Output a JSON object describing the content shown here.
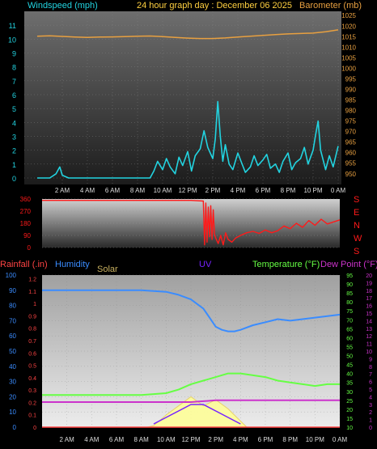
{
  "header": {
    "left_label": "Windspeed (mph)",
    "title": "24 hour graph day : December 06 2025",
    "right_label": "Barometer (mb)"
  },
  "direction_letters": [
    "S",
    "E",
    "N",
    "W",
    "S"
  ],
  "bottom_labels": {
    "rainfall": "Rainfall (.in)",
    "humidity": "Humidity",
    "solar": "Solar",
    "uv": "UV",
    "temperature": "Temperature (°F)",
    "dewpoint": "Dew Point (°F)"
  },
  "colors": {
    "windspeed": "#22d3e0",
    "barometer": "#e8a040",
    "direction": "#ff1a1a",
    "humidity": "#3a8cff",
    "temperature": "#66ff44",
    "dewpoint": "#cc33cc",
    "solar": "#ffff99",
    "uv": "#7722ff",
    "rainfall": "#ff4444"
  },
  "chart_data": [
    {
      "type": "line",
      "name": "wind-barometer",
      "x_ticks": [
        "2 AM",
        "4 AM",
        "6 AM",
        "8 AM",
        "10 AM",
        "12 PM",
        "2 PM",
        "4 PM",
        "6 PM",
        "8 PM",
        "10 PM",
        "0 AM"
      ],
      "y_left_ticks": [
        "0",
        "1",
        "2",
        "3",
        "4",
        "5",
        "6",
        "7",
        "8",
        "9",
        "10",
        "11"
      ],
      "y_left_range": [
        0,
        12
      ],
      "y_right_ticks": [
        "950",
        "955",
        "960",
        "965",
        "970",
        "975",
        "980",
        "985",
        "990",
        "995",
        "1000",
        "1005",
        "1010",
        "1015",
        "1020",
        "1025"
      ],
      "y_right_range": [
        948,
        1027
      ],
      "series": [
        {
          "name": "Windspeed (mph)",
          "hours": [
            0,
            0.5,
            1,
            1.5,
            1.8,
            2,
            2.5,
            3,
            4,
            5,
            6,
            7,
            8,
            8.5,
            9,
            9.3,
            9.6,
            10,
            10.3,
            10.6,
            11,
            11.3,
            11.6,
            12,
            12.3,
            12.6,
            13,
            13.3,
            13.6,
            14,
            14.2,
            14.4,
            14.6,
            14.8,
            15,
            15.3,
            15.6,
            16,
            16.3,
            16.6,
            17,
            17.3,
            17.6,
            18,
            18.3,
            18.6,
            19,
            19.3,
            19.6,
            20,
            20.3,
            20.6,
            21,
            21.3,
            21.6,
            22,
            22.2,
            22.4,
            22.6,
            22.8,
            23,
            23.3,
            23.6,
            24
          ],
          "values": [
            0,
            0,
            0,
            0.3,
            0.8,
            0.2,
            0,
            0,
            0,
            0,
            0,
            0,
            0,
            0,
            0,
            0.5,
            1.2,
            0.6,
            1.4,
            0.8,
            0.3,
            1.5,
            0.9,
            1.9,
            0.5,
            1.6,
            2.1,
            3.4,
            2.2,
            1.4,
            2.8,
            5.5,
            3.0,
            1.2,
            2.4,
            1.0,
            0.6,
            1.8,
            1.1,
            0.4,
            0.8,
            1.6,
            0.9,
            1.3,
            1.7,
            0.7,
            1.0,
            0.4,
            1.2,
            1.8,
            0.6,
            1.1,
            1.4,
            2.2,
            1.0,
            2.0,
            3.1,
            4.1,
            2.0,
            1.3,
            0.6,
            1.6,
            0.8,
            2.3
          ]
        },
        {
          "name": "Barometer (mb)",
          "hours": [
            0,
            1,
            2,
            3,
            4,
            5,
            6,
            7,
            8,
            9,
            10,
            11,
            12,
            13,
            14,
            15,
            16,
            17,
            18,
            19,
            20,
            21,
            22,
            23,
            24
          ],
          "values": [
            1015.2,
            1015.4,
            1015.1,
            1014.8,
            1014.6,
            1014.8,
            1014.9,
            1015.0,
            1015.2,
            1015.3,
            1015.0,
            1014.6,
            1014.3,
            1014.1,
            1014.1,
            1014.4,
            1014.8,
            1015.2,
            1015.6,
            1016.0,
            1016.3,
            1016.5,
            1016.7,
            1017.3,
            1018.2
          ]
        }
      ]
    },
    {
      "type": "line",
      "name": "wind-direction",
      "y_ticks": [
        "0",
        "90",
        "180",
        "270",
        "360"
      ],
      "y_range": [
        0,
        360
      ],
      "series": [
        {
          "name": "Wind Direction",
          "hours": [
            0,
            2,
            4,
            6,
            8,
            10,
            12,
            13,
            13.1,
            13.2,
            13.3,
            13.4,
            13.5,
            13.6,
            13.7,
            13.8,
            13.9,
            14,
            14.2,
            14.4,
            14.6,
            14.8,
            15,
            15.3,
            15.6,
            16,
            16.5,
            17,
            17.5,
            18,
            18.5,
            19,
            19.5,
            20,
            20.5,
            21,
            21.5,
            22,
            22.5,
            23,
            23.5,
            24
          ],
          "values": [
            350,
            350,
            350,
            350,
            350,
            350,
            350,
            345,
            20,
            330,
            40,
            300,
            80,
            310,
            60,
            280,
            100,
            70,
            30,
            90,
            20,
            110,
            60,
            40,
            70,
            90,
            110,
            120,
            105,
            130,
            110,
            125,
            160,
            140,
            180,
            150,
            200,
            165,
            210,
            175,
            190,
            205
          ]
        }
      ]
    },
    {
      "type": "line",
      "name": "rain-humidity-temperature",
      "y_left_ticks": [
        "0",
        "10",
        "20",
        "30",
        "40",
        "50",
        "60",
        "70",
        "80",
        "90",
        "100"
      ],
      "y_left_range": [
        0,
        100
      ],
      "y_rain_ticks": [
        "0",
        "0.1",
        "0.2",
        "0.3",
        "0.4",
        "0.5",
        "0.6",
        "0.7",
        "0.8",
        "0.9",
        "1",
        "1.1",
        "1.2"
      ],
      "y_temp_ticks": [
        "10",
        "15",
        "20",
        "25",
        "30",
        "35",
        "40",
        "45",
        "50",
        "55",
        "60",
        "65",
        "70",
        "75",
        "80",
        "85",
        "90",
        "95"
      ],
      "y_temp_range": [
        10,
        95
      ],
      "y_dew_ticks": [
        "0",
        "1",
        "2",
        "3",
        "4",
        "5",
        "6",
        "7",
        "8",
        "9",
        "10",
        "11",
        "12",
        "13",
        "14",
        "15",
        "16",
        "17",
        "18",
        "19",
        "20"
      ],
      "series": [
        {
          "name": "Humidity",
          "hours": [
            0,
            2,
            4,
            6,
            8,
            10,
            11,
            12,
            13,
            13.5,
            14,
            14.5,
            15,
            15.5,
            16,
            17,
            18,
            19,
            20,
            21,
            22,
            23,
            24
          ],
          "values": [
            90,
            90,
            90,
            90,
            90,
            89,
            87,
            84,
            78,
            72,
            66,
            64,
            63,
            63,
            64,
            67,
            69,
            71,
            70,
            71,
            72,
            73,
            74
          ]
        },
        {
          "name": "Temperature (°F)",
          "hours": [
            0,
            2,
            4,
            6,
            8,
            10,
            11,
            12,
            13,
            14,
            15,
            16,
            17,
            18,
            19,
            20,
            21,
            22,
            23,
            24
          ],
          "values": [
            28,
            28,
            28,
            28,
            28,
            29,
            31,
            34,
            36,
            38,
            40,
            40,
            39,
            38,
            36,
            35,
            34,
            33,
            34,
            34
          ]
        },
        {
          "name": "Dew Point (°F)",
          "hours": [
            0,
            2,
            4,
            6,
            8,
            10,
            12,
            14,
            16,
            18,
            20,
            22,
            24
          ],
          "values": [
            24,
            24,
            24,
            24,
            24,
            24,
            24,
            25,
            25,
            25,
            25,
            25,
            25
          ]
        },
        {
          "name": "Solar",
          "hours": [
            8.5,
            9,
            10,
            11,
            12,
            12.5,
            13,
            14,
            15,
            16,
            16.5
          ],
          "values": [
            0,
            1,
            8,
            14,
            20,
            17,
            14,
            18,
            12,
            4,
            0
          ]
        },
        {
          "name": "UV",
          "hours": [
            9,
            10,
            11,
            12,
            13,
            14,
            15,
            16
          ],
          "values": [
            0,
            1,
            2,
            3,
            3,
            2,
            1,
            0
          ]
        },
        {
          "name": "Rainfall (.in)",
          "hours": [
            0,
            24
          ],
          "values": [
            0,
            0
          ]
        }
      ]
    }
  ]
}
